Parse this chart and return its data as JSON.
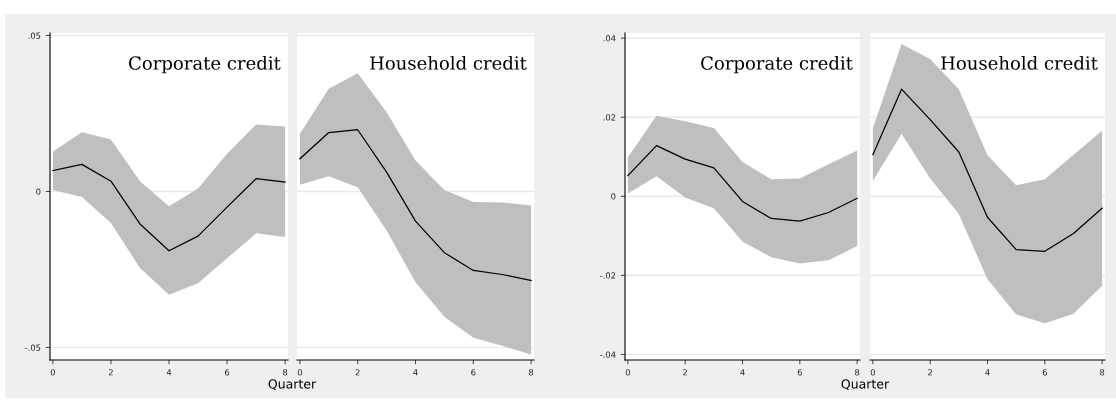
{
  "chart_data": [
    {
      "type": "line",
      "title": "Corporate credit",
      "xlabel": "Quarter",
      "x": [
        0,
        1,
        2,
        3,
        4,
        5,
        6,
        7,
        8
      ],
      "xlim": [
        -0.1,
        8.1
      ],
      "xticks": [
        0,
        2,
        4,
        6,
        8
      ],
      "ylim": [
        -0.054,
        0.0508
      ],
      "yticks": [
        {
          "value": 0.05,
          "label": ".05"
        },
        0,
        {
          "value": -0.05,
          "label": "-.05"
        }
      ],
      "grid": "y",
      "series": [
        {
          "color": "#000000",
          "values": [
            0.0067,
            0.0087,
            0.0033,
            -0.0104,
            -0.019,
            -0.0143,
            -0.005,
            0.0041,
            0.003
          ],
          "upper": [
            0.0128,
            0.019,
            0.0167,
            0.0033,
            -0.0047,
            0.001,
            0.0121,
            0.0215,
            0.0208
          ],
          "lower": [
            0.0005,
            -0.0018,
            -0.0101,
            -0.0245,
            -0.0331,
            -0.0294,
            -0.0214,
            -0.0134,
            -0.0146
          ]
        }
      ]
    },
    {
      "type": "line",
      "title": "Household credit",
      "x": [
        0,
        1,
        2,
        3,
        4,
        5,
        6,
        7,
        8
      ],
      "xlim": [
        -0.1,
        8.1
      ],
      "xticks": [
        0,
        2,
        4,
        6,
        8
      ],
      "ylim": [
        -0.054,
        0.0508
      ],
      "yticks": [
        {
          "value": 0.05,
          "label": null
        },
        {
          "value": 0,
          "label": null
        },
        {
          "value": -0.05,
          "label": null
        }
      ],
      "grid": "y",
      "tick_labels": "x",
      "series": [
        {
          "color": "#000000",
          "values": [
            0.0105,
            0.0189,
            0.0198,
            0.0062,
            -0.0095,
            -0.0196,
            -0.0253,
            -0.0266,
            -0.0285
          ],
          "upper": [
            0.0185,
            0.0329,
            0.0379,
            0.0254,
            0.0099,
            0.0005,
            -0.0034,
            -0.0035,
            -0.0045
          ],
          "lower": [
            0.0022,
            0.0049,
            0.0014,
            -0.0125,
            -0.0291,
            -0.0401,
            -0.0469,
            -0.0494,
            -0.0522
          ]
        }
      ]
    },
    {
      "type": "line",
      "title": "Corporate credit",
      "xlabel": "Quarter",
      "x": [
        0,
        1,
        2,
        3,
        4,
        5,
        6,
        7,
        8
      ],
      "xlim": [
        -0.1,
        8.1
      ],
      "xticks": [
        0,
        2,
        4,
        6,
        8
      ],
      "ylim": [
        -0.0414,
        0.0413
      ],
      "yticks": [
        {
          "value": 0.04,
          "label": ".04"
        },
        {
          "value": 0.02,
          "label": ".02"
        },
        0,
        {
          "value": -0.02,
          "label": "-.02"
        },
        {
          "value": -0.04,
          "label": "-.04"
        }
      ],
      "grid": "y",
      "series": [
        {
          "color": "#000000",
          "values": [
            0.0052,
            0.0128,
            0.0094,
            0.0072,
            -0.0013,
            -0.0056,
            -0.0063,
            -0.0041,
            -0.0005
          ],
          "upper": [
            0.0099,
            0.0204,
            0.019,
            0.0173,
            0.0087,
            0.0043,
            0.0045,
            0.0081,
            0.0116
          ],
          "lower": [
            0.0007,
            0.0051,
            -0.0003,
            -0.003,
            -0.0114,
            -0.0154,
            -0.017,
            -0.0162,
            -0.0126
          ]
        }
      ]
    },
    {
      "type": "line",
      "title": "Household credit",
      "x": [
        0,
        1,
        2,
        3,
        4,
        5,
        6,
        7,
        8
      ],
      "xlim": [
        -0.1,
        8.1
      ],
      "xticks": [
        0,
        2,
        4,
        6,
        8
      ],
      "ylim": [
        -0.0414,
        0.0413
      ],
      "yticks": [
        {
          "value": 0.04,
          "label": null
        },
        {
          "value": 0.02,
          "label": null
        },
        {
          "value": 0,
          "label": null
        },
        {
          "value": -0.02,
          "label": null
        },
        {
          "value": -0.04,
          "label": null
        }
      ],
      "grid": "y",
      "tick_labels": "x",
      "series": [
        {
          "color": "#000000",
          "values": [
            0.0105,
            0.0271,
            0.0194,
            0.0112,
            -0.0053,
            -0.0135,
            -0.0139,
            -0.0094,
            -0.003
          ],
          "upper": [
            0.0172,
            0.0385,
            0.0347,
            0.0271,
            0.0104,
            0.0028,
            0.0043,
            0.0105,
            0.0166
          ],
          "lower": [
            0.0039,
            0.0158,
            0.0045,
            -0.0045,
            -0.021,
            -0.0299,
            -0.0321,
            -0.0297,
            -0.0226
          ]
        }
      ]
    }
  ]
}
